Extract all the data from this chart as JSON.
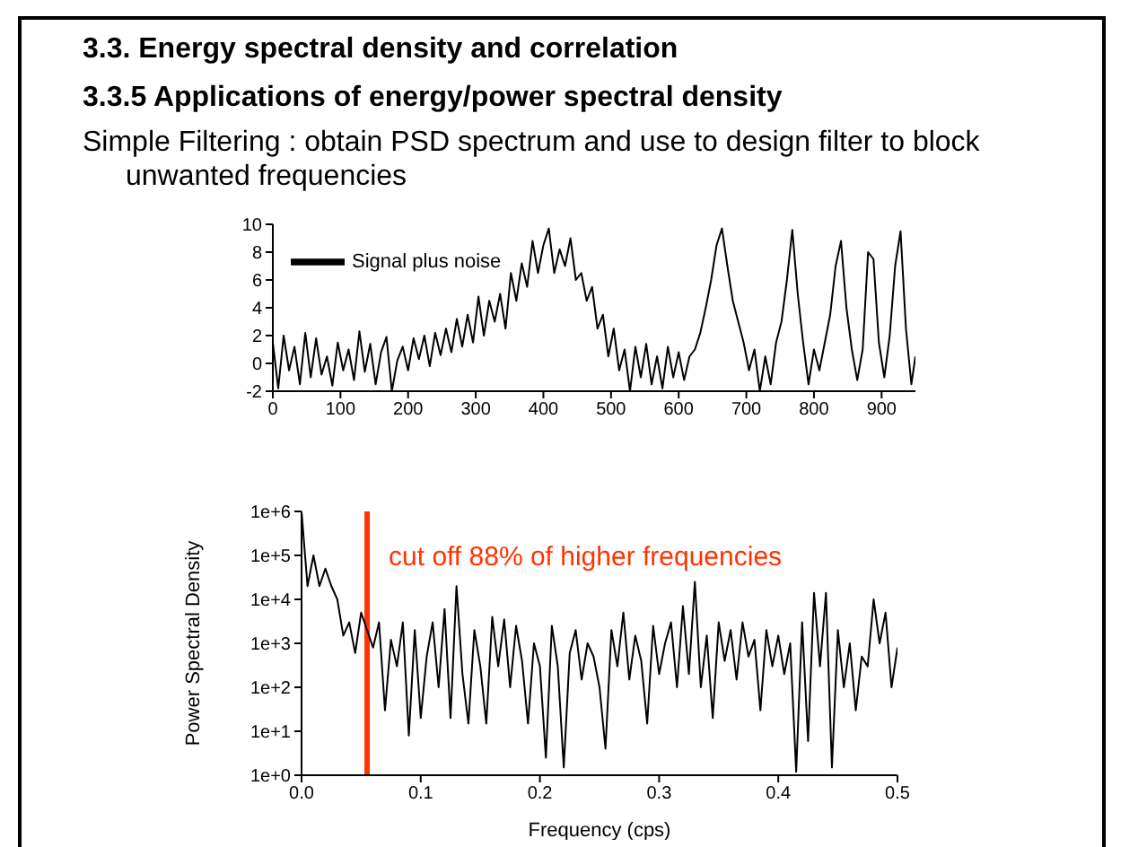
{
  "chart_data": [
    {
      "type": "line",
      "title": "3.3. Energy spectral density and correlation",
      "subtitle": "3.3.5 Applications of energy/power spectral density",
      "annotations": [
        "Simple Filtering : obtain PSD spectrum and use to design filter to block unwanted frequencies"
      ],
      "x": [
        0,
        8,
        16,
        24,
        32,
        40,
        48,
        56,
        64,
        72,
        80,
        88,
        96,
        104,
        112,
        120,
        128,
        136,
        144,
        152,
        160,
        168,
        176,
        184,
        192,
        200,
        208,
        216,
        224,
        232,
        240,
        248,
        256,
        264,
        272,
        280,
        288,
        296,
        304,
        312,
        320,
        328,
        336,
        344,
        352,
        360,
        368,
        376,
        384,
        392,
        400,
        408,
        416,
        424,
        432,
        440,
        448,
        456,
        464,
        472,
        480,
        488,
        496,
        504,
        512,
        520,
        528,
        536,
        544,
        552,
        560,
        568,
        576,
        584,
        592,
        600,
        608,
        616,
        624,
        632,
        640,
        648,
        656,
        664,
        672,
        680,
        688,
        696,
        704,
        712,
        720,
        728,
        736,
        744,
        752,
        760,
        768,
        776,
        784,
        792,
        800,
        808,
        816,
        824,
        832,
        840,
        848,
        856,
        864,
        872,
        880,
        888,
        896,
        904,
        912,
        920,
        928,
        936,
        944,
        950
      ],
      "series": [
        {
          "name": "Signal plus noise",
          "color": "#000000",
          "values": [
            1.5,
            -1.8,
            2.0,
            -0.5,
            1.2,
            -1.5,
            2.2,
            -1.0,
            1.8,
            -0.8,
            0.5,
            -1.6,
            1.5,
            -0.5,
            1.0,
            -1.2,
            2.3,
            -0.6,
            1.4,
            -1.5,
            0.8,
            1.9,
            -2.0,
            0.2,
            1.2,
            -0.5,
            1.8,
            0.3,
            2.0,
            -0.2,
            2.2,
            0.6,
            2.5,
            0.8,
            3.2,
            1.2,
            3.5,
            1.5,
            4.8,
            2.0,
            4.5,
            3.0,
            5.0,
            2.5,
            6.5,
            4.5,
            7.2,
            5.5,
            8.8,
            6.5,
            8.5,
            9.7,
            6.5,
            8.2,
            7.0,
            9.0,
            6.0,
            6.5,
            4.5,
            5.5,
            2.5,
            3.5,
            0.5,
            2.5,
            -0.5,
            1.0,
            -2.0,
            1.2,
            -1.0,
            1.4,
            -1.5,
            0.5,
            -1.8,
            1.2,
            -1.0,
            0.8,
            -1.2,
            0.5,
            1.0,
            2.2,
            4.0,
            6.0,
            8.5,
            9.7,
            7.0,
            4.5,
            3.0,
            1.5,
            -0.5,
            1.0,
            -2.0,
            0.5,
            -1.5,
            1.5,
            3.0,
            6.0,
            9.6,
            5.0,
            1.5,
            -1.5,
            1.0,
            -0.5,
            1.5,
            3.5,
            7.0,
            8.8,
            4.0,
            1.0,
            -1.2,
            1.0,
            8.0,
            7.5,
            1.5,
            -1.0,
            2.0,
            7.0,
            9.5,
            2.5,
            -1.5,
            0.5
          ]
        }
      ],
      "xlim": [
        0,
        950
      ],
      "xticks": [
        0,
        100,
        200,
        300,
        400,
        500,
        600,
        700,
        800,
        900
      ],
      "ylim": [
        -2,
        10
      ],
      "yticks": [
        -2,
        0,
        2,
        4,
        6,
        8,
        10
      ],
      "legend": "top left",
      "grid": false
    },
    {
      "type": "line",
      "xlabel": "Frequency (cps)",
      "ylabel": "Power Spectral Density",
      "log": "y",
      "x": [
        0,
        0.005,
        0.01,
        0.015,
        0.02,
        0.025,
        0.03,
        0.035,
        0.04,
        0.045,
        0.05,
        0.055,
        0.06,
        0.065,
        0.07,
        0.075,
        0.08,
        0.085,
        0.09,
        0.095,
        0.1,
        0.105,
        0.11,
        0.115,
        0.12,
        0.125,
        0.13,
        0.135,
        0.14,
        0.145,
        0.15,
        0.155,
        0.16,
        0.165,
        0.17,
        0.175,
        0.18,
        0.185,
        0.19,
        0.195,
        0.2,
        0.205,
        0.21,
        0.215,
        0.22,
        0.225,
        0.23,
        0.235,
        0.24,
        0.245,
        0.25,
        0.255,
        0.26,
        0.265,
        0.27,
        0.275,
        0.28,
        0.285,
        0.29,
        0.295,
        0.3,
        0.305,
        0.31,
        0.315,
        0.32,
        0.325,
        0.33,
        0.335,
        0.34,
        0.345,
        0.35,
        0.355,
        0.36,
        0.365,
        0.37,
        0.375,
        0.38,
        0.385,
        0.39,
        0.395,
        0.4,
        0.405,
        0.41,
        0.415,
        0.42,
        0.425,
        0.43,
        0.435,
        0.44,
        0.445,
        0.45,
        0.455,
        0.46,
        0.465,
        0.47,
        0.475,
        0.48,
        0.485,
        0.49,
        0.495,
        0.5
      ],
      "series": [
        {
          "color": "#000000",
          "values": [
            1000000,
            20000,
            100000,
            20000,
            50000,
            20000,
            10000,
            1500,
            3000,
            600,
            5000,
            2000,
            800,
            3000,
            30,
            1200,
            300,
            3000,
            8,
            2000,
            20,
            500,
            3000,
            100,
            6000,
            20,
            20000,
            200,
            15,
            2000,
            300,
            15,
            4000,
            300,
            3500,
            100,
            2500,
            400,
            15,
            1000,
            300,
            2.5,
            2500,
            300,
            1.5,
            600,
            2000,
            150,
            1000,
            500,
            100,
            4,
            2000,
            300,
            5000,
            150,
            1500,
            400,
            15,
            2500,
            200,
            1000,
            3000,
            100,
            7000,
            200,
            25000,
            100,
            1500,
            20,
            3000,
            400,
            2000,
            150,
            3000,
            500,
            1200,
            30,
            2000,
            300,
            1500,
            200,
            1000,
            1.2,
            3000,
            6,
            14000,
            300,
            14000,
            1.5,
            2000,
            100,
            1000,
            30,
            500,
            300,
            10000,
            1000,
            5000,
            100,
            800
          ]
        }
      ],
      "xlim": [
        0,
        0.5
      ],
      "xticks": [
        {
          "value": 0,
          "label": "0.0"
        },
        0.1,
        0.2,
        0.3,
        0.4,
        0.5
      ],
      "ylim": [
        1,
        1000000
      ],
      "yticks": [
        {
          "value": 1,
          "label": "1e+0"
        },
        {
          "value": 10,
          "label": "1e+1"
        },
        {
          "value": 100,
          "label": "1e+2"
        },
        {
          "value": 1000,
          "label": "1e+3"
        },
        {
          "value": 10000,
          "label": "1e+4"
        },
        {
          "value": 100000,
          "label": "1e+5"
        },
        {
          "value": 1000000,
          "label": "1e+6"
        }
      ],
      "ref_lines": [
        {
          "axis": "x",
          "value": 0.055,
          "label": "cut off 88% of higher frequencies",
          "color": "#ff3300"
        }
      ],
      "grid": false
    }
  ]
}
